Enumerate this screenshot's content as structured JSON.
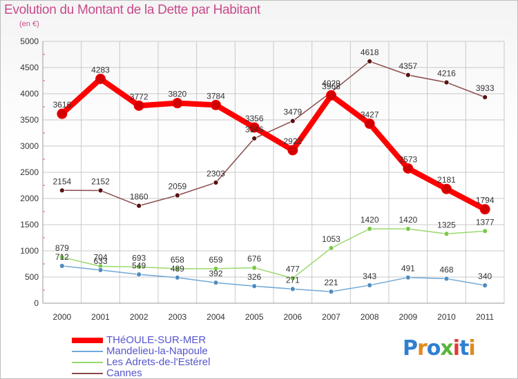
{
  "title": "Evolution du Montant de la Dette par Habitant",
  "unit": "(en €)",
  "logo_text": "Proxiti",
  "colors": {
    "title": "#c84a8a",
    "legend_text": "#5555cc",
    "grid": "#c8c8c8",
    "tick_marks": "#e05050"
  },
  "chart_data": {
    "type": "line",
    "title": "Evolution du Montant de la Dette par Habitant",
    "ylabel": "(en €)",
    "xlabel": "",
    "ylim": [
      0,
      5000
    ],
    "yticks": [
      0,
      500,
      1000,
      1500,
      2000,
      2500,
      3000,
      3500,
      4000,
      4500,
      5000
    ],
    "categories": [
      "2000",
      "2001",
      "2002",
      "2003",
      "2004",
      "2005",
      "2006",
      "2007",
      "2008",
      "2009",
      "2010",
      "2011"
    ],
    "grid": true,
    "legend_position": "bottom-left",
    "series": [
      {
        "name": "THéOULE-SUR-MER",
        "color": "#ff0000",
        "marker": "#d20000",
        "values": [
          3616,
          4283,
          3772,
          3820,
          3784,
          3356,
          2922,
          3968,
          3427,
          2573,
          2181,
          1794
        ],
        "labels": [
          "3616",
          "4283",
          "3772",
          "3820",
          "3784",
          "3356",
          "2922",
          "3968",
          "3427",
          "2573",
          "2181",
          "1794"
        ]
      },
      {
        "name": "Mandelieu-la-Napoule",
        "color": "#6fa8d8",
        "marker": "#4f8cc0",
        "values": [
          712,
          633,
          549,
          489,
          392,
          326,
          271,
          221,
          343,
          491,
          468,
          340
        ],
        "labels": [
          "712",
          "633",
          "549",
          "489",
          "392",
          "326",
          "271",
          "221",
          "343",
          "491",
          "468",
          "340"
        ]
      },
      {
        "name": "Les Adrets-de-l'Estérel",
        "color": "#9ad86c",
        "marker": "#7cc84a",
        "values": [
          879,
          704,
          693,
          658,
          659,
          676,
          477,
          1053,
          1420,
          1420,
          1325,
          1377
        ],
        "labels": [
          "879",
          "704",
          "693",
          "658",
          "659",
          "676",
          "477",
          "1053",
          "1420",
          "1420",
          "1325",
          "1377"
        ]
      },
      {
        "name": "Cannes",
        "color": "#8a4a4a",
        "marker": "#5a1010",
        "values": [
          2154,
          2152,
          1860,
          2059,
          2303,
          3146,
          3479,
          4029,
          4618,
          4357,
          4216,
          3933
        ],
        "labels": [
          "2154",
          "2152",
          "1860",
          "2059",
          "2303",
          "3146",
          "3479",
          "4029",
          "4618",
          "4357",
          "4216",
          "3933"
        ]
      }
    ]
  },
  "legend": [
    {
      "label": "THéOULE-SUR-MER",
      "color": "#ff0000",
      "thickness": 8
    },
    {
      "label": "Mandelieu-la-Napoule",
      "color": "#6fa8d8",
      "thickness": 2
    },
    {
      "label": "Les Adrets-de-l'Estérel",
      "color": "#9ad86c",
      "thickness": 2
    },
    {
      "label": "Cannes",
      "color": "#8a4a4a",
      "thickness": 2
    }
  ]
}
